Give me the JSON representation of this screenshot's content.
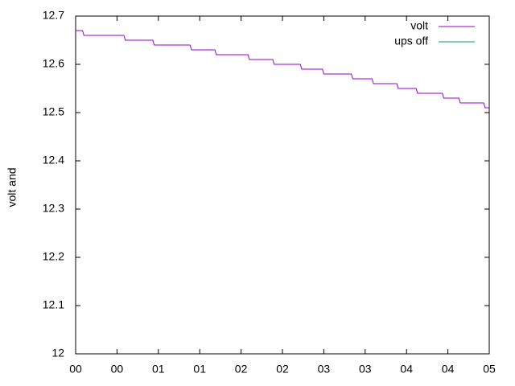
{
  "chart_data": {
    "type": "line",
    "y_label": "volt and",
    "x": [
      0,
      5,
      6,
      35,
      36,
      56,
      57,
      83,
      84,
      101,
      102,
      125,
      126,
      143,
      144,
      163,
      164,
      179,
      180,
      200,
      201,
      215,
      216,
      233,
      234,
      247,
      248,
      266,
      267,
      278,
      279,
      296,
      297,
      300
    ],
    "series": [
      {
        "name": "volt",
        "color": "#9400d3",
        "values": [
          12.67,
          12.67,
          12.66,
          12.66,
          12.65,
          12.65,
          12.64,
          12.64,
          12.63,
          12.63,
          12.62,
          12.62,
          12.61,
          12.61,
          12.6,
          12.6,
          12.59,
          12.59,
          12.58,
          12.58,
          12.57,
          12.57,
          12.56,
          12.56,
          12.55,
          12.55,
          12.54,
          12.54,
          12.53,
          12.53,
          12.52,
          12.52,
          12.51,
          12.51
        ]
      },
      {
        "name": "ups off",
        "color": "#009e73",
        "values": [
          null,
          null,
          null,
          null,
          null,
          null,
          null,
          null,
          null,
          null,
          null,
          null,
          null,
          null,
          null,
          null,
          null,
          null,
          null,
          null,
          null,
          null,
          null,
          null,
          null,
          null,
          null,
          null,
          null,
          null,
          null,
          null,
          null,
          null
        ]
      }
    ],
    "xlim": [
      0,
      300
    ],
    "xticks": [
      {
        "value": 0,
        "label": "00"
      },
      {
        "value": 30,
        "label": "00"
      },
      {
        "value": 60,
        "label": "01"
      },
      {
        "value": 90,
        "label": "01"
      },
      {
        "value": 120,
        "label": "02"
      },
      {
        "value": 150,
        "label": "02"
      },
      {
        "value": 180,
        "label": "03"
      },
      {
        "value": 210,
        "label": "03"
      },
      {
        "value": 240,
        "label": "04"
      },
      {
        "value": 270,
        "label": "04"
      },
      {
        "value": 300,
        "label": "05"
      }
    ],
    "ylim": [
      12,
      12.7
    ],
    "yticks": [
      12,
      12.1,
      12.2,
      12.3,
      12.4,
      12.5,
      12.6,
      12.7
    ],
    "legend": "top-right",
    "grid": false
  }
}
